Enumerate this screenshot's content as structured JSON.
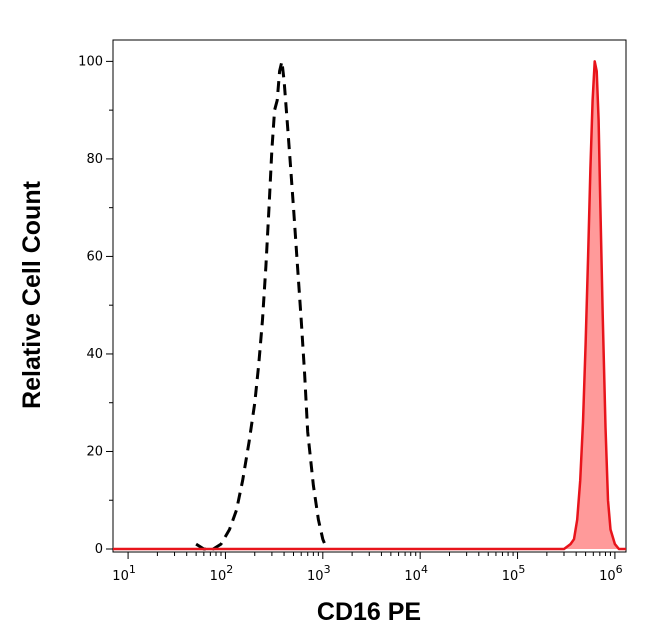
{
  "chart_data": {
    "type": "area",
    "title": "",
    "xlabel": "CD16 PE",
    "ylabel": "Relative Cell Count",
    "x_scale": "log",
    "xlim": [
      7,
      1300000
    ],
    "ylim": [
      0,
      105
    ],
    "grid": false,
    "y_ticks": [
      {
        "value": 0,
        "label": "0"
      },
      {
        "value": 20,
        "label": "20"
      },
      {
        "value": 40,
        "label": "40"
      },
      {
        "value": 60,
        "label": "60"
      },
      {
        "value": 80,
        "label": "80"
      },
      {
        "value": 100,
        "label": "100"
      }
    ],
    "x_ticks": [
      {
        "value": 10,
        "base": "10",
        "exp": "1"
      },
      {
        "value": 100,
        "base": "10",
        "exp": "2"
      },
      {
        "value": 1000,
        "base": "10",
        "exp": "3"
      },
      {
        "value": 10000,
        "base": "10",
        "exp": "4"
      },
      {
        "value": 100000,
        "base": "10",
        "exp": "5"
      },
      {
        "value": 1000000,
        "base": "10",
        "exp": "6"
      }
    ],
    "series": [
      {
        "style": "dashed-line",
        "color": "#000000",
        "x": [
          50,
          60,
          75,
          90,
          110,
          130,
          150,
          175,
          200,
          220,
          240,
          260,
          280,
          300,
          320,
          340,
          360,
          380,
          400,
          430,
          460,
          500,
          550,
          600,
          650,
          700,
          800,
          900,
          1000,
          1100
        ],
        "y": [
          1,
          0,
          0,
          1,
          4,
          8,
          14,
          22,
          30,
          38,
          47,
          58,
          70,
          82,
          90,
          92,
          98,
          100,
          96,
          88,
          80,
          70,
          58,
          47,
          36,
          24,
          13,
          6,
          2,
          0
        ]
      },
      {
        "style": "filled-area",
        "color": "#e8141b",
        "fill": "#ff9a9a",
        "x": [
          7,
          100,
          1000,
          10000,
          100000,
          300000,
          350000,
          380000,
          410000,
          440000,
          470000,
          500000,
          530000,
          560000,
          590000,
          620000,
          650000,
          680000,
          710000,
          750000,
          800000,
          850000,
          900000,
          1000000,
          1100000,
          1300000
        ],
        "y": [
          0,
          0,
          0,
          0,
          0,
          0,
          1,
          2,
          6,
          14,
          26,
          42,
          60,
          78,
          92,
          100,
          98,
          88,
          70,
          48,
          25,
          10,
          4,
          1,
          0,
          0
        ]
      }
    ]
  }
}
